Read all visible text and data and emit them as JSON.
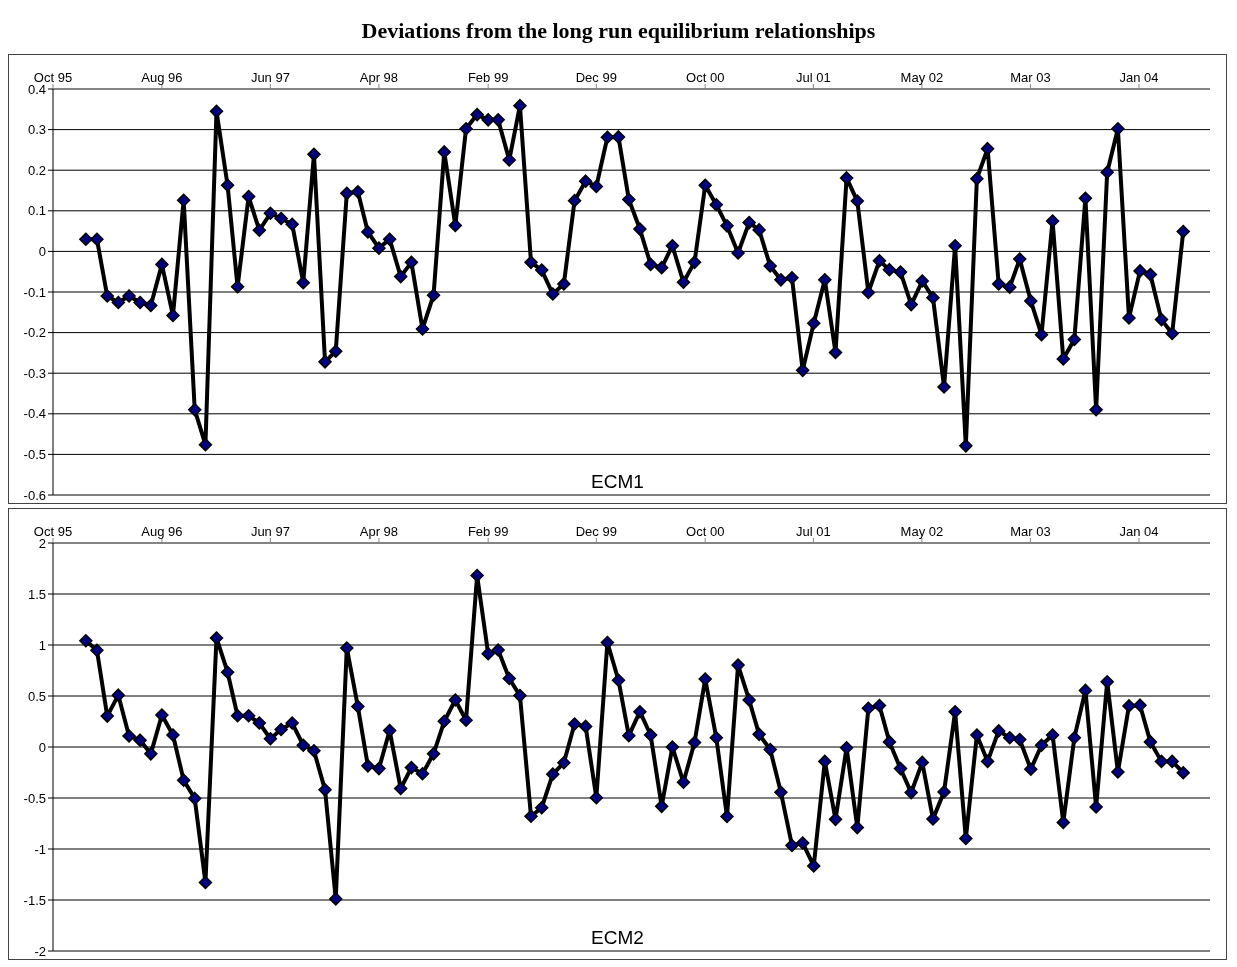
{
  "chart_data": [
    {
      "type": "line",
      "title": "Deviations from the long run equilibrium relationships",
      "annotations": [
        "ECM1"
      ],
      "color": "#000000",
      "marker": "diamond",
      "line_style": "solid",
      "grid": "y",
      "x": [
        "1996-01",
        "1996-02",
        "1996-03",
        "1996-04",
        "1996-05",
        "1996-06",
        "1996-07",
        "1996-08",
        "1996-09",
        "1996-10",
        "1996-11",
        "1996-12",
        "1997-01",
        "1997-02",
        "1997-03",
        "1997-04",
        "1997-05",
        "1997-06",
        "1997-07",
        "1997-08",
        "1997-09",
        "1997-10",
        "1997-11",
        "1997-12",
        "1998-01",
        "1998-02",
        "1998-03",
        "1998-04",
        "1998-05",
        "1998-06",
        "1998-07",
        "1998-08",
        "1998-09",
        "1998-10",
        "1998-11",
        "1998-12",
        "1999-01",
        "1999-02",
        "1999-03",
        "1999-04",
        "1999-05",
        "1999-06",
        "1999-07",
        "1999-08",
        "1999-09",
        "1999-10",
        "1999-11",
        "1999-12",
        "2000-01",
        "2000-02",
        "2000-03",
        "2000-04",
        "2000-05",
        "2000-06",
        "2000-07",
        "2000-08",
        "2000-09",
        "2000-10",
        "2000-11",
        "2000-12",
        "2001-01",
        "2001-02",
        "2001-03",
        "2001-04",
        "2001-05",
        "2001-06",
        "2001-07",
        "2001-08",
        "2001-09",
        "2001-10",
        "2001-11",
        "2001-12",
        "2002-01",
        "2002-02",
        "2002-03",
        "2002-04",
        "2002-05",
        "2002-06",
        "2002-07",
        "2002-08",
        "2002-09",
        "2002-10",
        "2002-11",
        "2002-12",
        "2003-01",
        "2003-02",
        "2003-03",
        "2003-04",
        "2003-05",
        "2003-06",
        "2003-07",
        "2003-08",
        "2003-09",
        "2003-10",
        "2003-11",
        "2003-12",
        "2004-01",
        "2004-02",
        "2004-03",
        "2004-04",
        "2004-05",
        "2004-06"
      ],
      "values": [
        0.03,
        0.03,
        -0.11,
        -0.126,
        -0.11,
        -0.126,
        -0.133,
        -0.032,
        -0.158,
        0.126,
        -0.39,
        -0.476,
        0.345,
        0.163,
        -0.087,
        0.135,
        0.052,
        0.094,
        0.081,
        0.067,
        -0.077,
        0.239,
        -0.272,
        -0.246,
        0.143,
        0.147,
        0.048,
        0.008,
        0.03,
        -0.062,
        -0.027,
        -0.191,
        -0.108,
        0.245,
        0.064,
        0.302,
        0.337,
        0.324,
        0.324,
        0.225,
        0.359,
        -0.027,
        -0.046,
        -0.105,
        -0.08,
        0.125,
        0.173,
        0.16,
        0.281,
        0.282,
        0.128,
        0.055,
        -0.032,
        -0.04,
        0.014,
        -0.076,
        -0.027,
        0.163,
        0.115,
        0.063,
        -0.004,
        0.071,
        0.053,
        -0.036,
        -0.07,
        -0.065,
        -0.293,
        -0.177,
        -0.07,
        -0.249,
        0.181,
        0.124,
        -0.101,
        -0.023,
        -0.045,
        -0.051,
        -0.131,
        -0.073,
        -0.114,
        -0.334,
        0.014,
        -0.479,
        0.179,
        0.253,
        -0.08,
        -0.088,
        -0.019,
        -0.122,
        -0.205,
        0.075,
        -0.265,
        -0.217,
        0.131,
        -0.39,
        0.195,
        0.302,
        -0.164,
        -0.048,
        -0.057,
        -0.168,
        -0.202,
        0.049
      ],
      "xlim": [
        "1995-10-01",
        "2004-08-15"
      ],
      "xticks": [
        {
          "value": "1995-10-01",
          "label": "Oct 95"
        },
        {
          "value": "1996-08-01",
          "label": "Aug 96"
        },
        {
          "value": "1997-06-01",
          "label": "Jun 97"
        },
        {
          "value": "1998-04-01",
          "label": "Apr 98"
        },
        {
          "value": "1999-02-01",
          "label": "Feb 99"
        },
        {
          "value": "1999-12-01",
          "label": "Dec 99"
        },
        {
          "value": "2000-10-01",
          "label": "Oct 00"
        },
        {
          "value": "2001-07-31",
          "label": "Jul 01"
        },
        {
          "value": "2002-05-31",
          "label": "May 02"
        },
        {
          "value": "2003-03-31",
          "label": "Mar 03"
        },
        {
          "value": "2004-01-29",
          "label": "Jan 04"
        }
      ],
      "ylim": [
        -0.6,
        0.4
      ],
      "yticks": [
        -0.6,
        -0.5,
        -0.4,
        -0.3,
        -0.2,
        -0.1,
        0,
        0.1,
        0.2,
        0.3,
        0.4
      ]
    },
    {
      "type": "line",
      "annotations": [
        "ECM2"
      ],
      "color": "#000000",
      "marker": "diamond",
      "line_style": "solid",
      "grid": "y",
      "x": [
        "1996-01",
        "1996-02",
        "1996-03",
        "1996-04",
        "1996-05",
        "1996-06",
        "1996-07",
        "1996-08",
        "1996-09",
        "1996-10",
        "1996-11",
        "1996-12",
        "1997-01",
        "1997-02",
        "1997-03",
        "1997-04",
        "1997-05",
        "1997-06",
        "1997-07",
        "1997-08",
        "1997-09",
        "1997-10",
        "1997-11",
        "1997-12",
        "1998-01",
        "1998-02",
        "1998-03",
        "1998-04",
        "1998-05",
        "1998-06",
        "1998-07",
        "1998-08",
        "1998-09",
        "1998-10",
        "1998-11",
        "1998-12",
        "1999-01",
        "1999-02",
        "1999-03",
        "1999-04",
        "1999-05",
        "1999-06",
        "1999-07",
        "1999-08",
        "1999-09",
        "1999-10",
        "1999-11",
        "1999-12",
        "2000-01",
        "2000-02",
        "2000-03",
        "2000-04",
        "2000-05",
        "2000-06",
        "2000-07",
        "2000-08",
        "2000-09",
        "2000-10",
        "2000-11",
        "2000-12",
        "2001-01",
        "2001-02",
        "2001-03",
        "2001-04",
        "2001-05",
        "2001-06",
        "2001-07",
        "2001-08",
        "2001-09",
        "2001-10",
        "2001-11",
        "2001-12",
        "2002-01",
        "2002-02",
        "2002-03",
        "2002-04",
        "2002-05",
        "2002-06",
        "2002-07",
        "2002-08",
        "2002-09",
        "2002-10",
        "2002-11",
        "2002-12",
        "2003-01",
        "2003-02",
        "2003-03",
        "2003-04",
        "2003-05",
        "2003-06",
        "2003-07",
        "2003-08",
        "2003-09",
        "2003-10",
        "2003-11",
        "2003-12",
        "2004-01",
        "2004-02",
        "2004-03",
        "2004-04",
        "2004-05",
        "2004-06"
      ],
      "values": [
        1.042,
        0.948,
        0.303,
        0.508,
        0.108,
        0.067,
        -0.067,
        0.313,
        0.118,
        -0.326,
        -0.504,
        -1.329,
        1.069,
        0.733,
        0.306,
        0.306,
        0.235,
        0.081,
        0.171,
        0.235,
        0.017,
        -0.037,
        -0.42,
        -1.489,
        0.971,
        0.397,
        -0.185,
        -0.212,
        0.161,
        -0.407,
        -0.202,
        -0.262,
        -0.067,
        0.252,
        0.461,
        0.262,
        1.681,
        0.914,
        0.951,
        0.672,
        0.504,
        -0.679,
        -0.595,
        -0.266,
        -0.155,
        0.225,
        0.202,
        -0.497,
        1.025,
        0.655,
        0.111,
        0.346,
        0.118,
        -0.582,
        0,
        -0.346,
        0.044,
        0.666,
        0.091,
        -0.682,
        0.803,
        0.461,
        0.124,
        -0.024,
        -0.444,
        -0.965,
        -0.941,
        -1.166,
        -0.141,
        -0.709,
        -0.007,
        -0.79,
        0.38,
        0.407,
        0.05,
        -0.212,
        -0.447,
        -0.151,
        -0.706,
        -0.44,
        0.346,
        -0.897,
        0.118,
        -0.141,
        0.158,
        0.091,
        0.074,
        -0.218,
        0.017,
        0.118,
        -0.739,
        0.091,
        0.555,
        -0.588,
        0.639,
        -0.245,
        0.403,
        0.41,
        0.05,
        -0.141,
        -0.141,
        -0.252
      ],
      "xlim": [
        "1995-10-01",
        "2004-08-15"
      ],
      "xticks": [
        {
          "value": "1995-10-01",
          "label": "Oct 95"
        },
        {
          "value": "1996-08-01",
          "label": "Aug 96"
        },
        {
          "value": "1997-06-01",
          "label": "Jun 97"
        },
        {
          "value": "1998-04-01",
          "label": "Apr 98"
        },
        {
          "value": "1999-02-01",
          "label": "Feb 99"
        },
        {
          "value": "1999-12-01",
          "label": "Dec 99"
        },
        {
          "value": "2000-10-01",
          "label": "Oct 00"
        },
        {
          "value": "2001-07-31",
          "label": "Jul 01"
        },
        {
          "value": "2002-05-31",
          "label": "May 02"
        },
        {
          "value": "2003-03-31",
          "label": "Mar 03"
        },
        {
          "value": "2004-01-29",
          "label": "Jan 04"
        }
      ],
      "ylim": [
        -2,
        2
      ],
      "yticks": [
        -2,
        -1.5,
        -1,
        -0.5,
        0,
        0.5,
        1,
        1.5,
        2
      ]
    }
  ]
}
